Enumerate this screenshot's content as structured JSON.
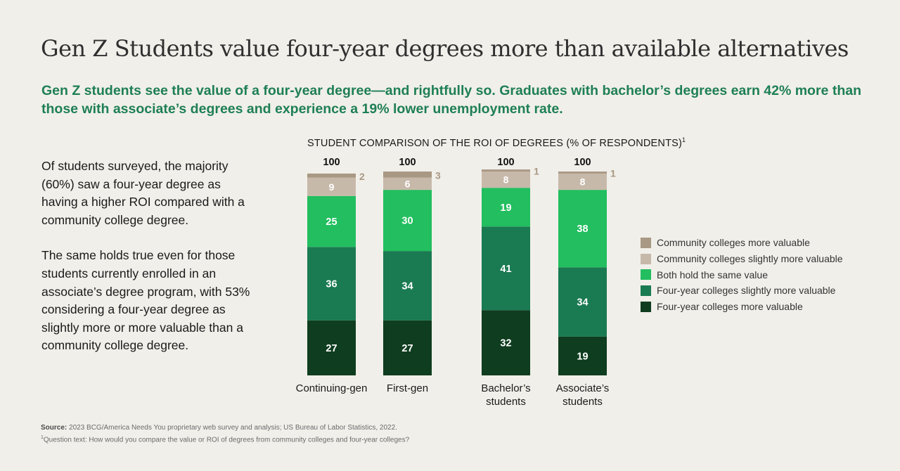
{
  "title": "Gen Z Students value four-year degrees more than available alternatives",
  "subtitle": "Gen Z students see the value of a four-year degree—and rightfully so. Graduates with bachelor’s degrees earn 42% more than those with associate’s degrees and experience a 19% lower unemployment rate.",
  "body": {
    "para1": "Of students surveyed, the majority (60%) saw a four-year degree as having a higher ROI compared with a community college degree.",
    "para2": "The same holds true even for those students currently enrolled in an associate’s degree program, with 53% considering a four-year degree as slightly more or more valuable than a community college degree."
  },
  "footer": {
    "source_label": "Source:",
    "source_text": "2023 BCG/America Needs You proprietary web survey and analysis; US Bureau of Labor Statistics, 2022.",
    "footnote_marker": "1",
    "footnote_text": "Question text: How would you compare the value or ROI of degrees from community colleges and four-year colleges?"
  },
  "chart_data": {
    "type": "bar",
    "stacked": true,
    "title": "STUDENT COMPARISON OF THE ROI OF DEGREES (% OF RESPONDENTS)",
    "title_footnote": "1",
    "categories": [
      "Continuing-gen",
      "First-gen",
      "Bachelor’s students",
      "Associate’s students"
    ],
    "totals": [
      100,
      100,
      100,
      100
    ],
    "ylim": [
      0,
      100
    ],
    "legend_position": "right",
    "series": [
      {
        "name": "Four-year colleges more valuable",
        "color": "#0f3d1f",
        "values": [
          27,
          27,
          32,
          19
        ]
      },
      {
        "name": "Four-year colleges slightly more valuable",
        "color": "#1a7a52",
        "values": [
          36,
          34,
          41,
          34
        ]
      },
      {
        "name": "Both hold the same value",
        "color": "#22be5f",
        "values": [
          25,
          30,
          19,
          38
        ]
      },
      {
        "name": "Community colleges slightly more valuable",
        "color": "#c7b9aa",
        "values": [
          9,
          6,
          8,
          8
        ]
      },
      {
        "name": "Community colleges more valuable",
        "color": "#a99883",
        "values": [
          2,
          3,
          1,
          1
        ]
      }
    ]
  }
}
